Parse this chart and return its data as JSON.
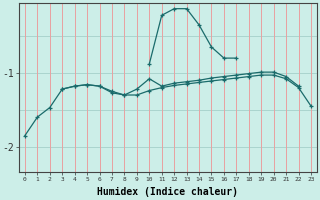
{
  "xlabel": "Humidex (Indice chaleur)",
  "background_color": "#cceee8",
  "grid_color_h": "#aad4ce",
  "grid_color_v": "#e8a0a0",
  "line_color": "#1a6b6b",
  "x": [
    0,
    1,
    2,
    3,
    4,
    5,
    6,
    7,
    8,
    9,
    10,
    11,
    12,
    13,
    14,
    15,
    16,
    17,
    18,
    19,
    20,
    21,
    22,
    23
  ],
  "line_peak": [
    null,
    null,
    null,
    null,
    null,
    null,
    null,
    null,
    null,
    null,
    -0.88,
    -0.22,
    -0.13,
    -0.13,
    -0.35,
    -0.65,
    -0.8,
    -0.8,
    null,
    null,
    null,
    null,
    null,
    null
  ],
  "line_mid": [
    null,
    null,
    null,
    -1.22,
    -1.18,
    -1.16,
    -1.18,
    -1.25,
    -1.3,
    -1.22,
    -1.08,
    -1.18,
    -1.14,
    -1.12,
    -1.1,
    -1.07,
    -1.05,
    -1.03,
    -1.01,
    -0.99,
    -0.99,
    -1.05,
    -1.18,
    null
  ],
  "line_bot": [
    -1.85,
    -1.6,
    -1.47,
    -1.22,
    -1.18,
    -1.16,
    -1.18,
    -1.27,
    -1.3,
    -1.3,
    -1.24,
    -1.2,
    -1.17,
    -1.15,
    -1.13,
    -1.11,
    -1.09,
    -1.07,
    -1.05,
    -1.03,
    -1.03,
    -1.08,
    -1.2,
    -1.45
  ],
  "ylim": [
    -2.35,
    -0.05
  ],
  "yticks": [
    -2,
    -1
  ],
  "xlim": [
    -0.5,
    23.5
  ]
}
